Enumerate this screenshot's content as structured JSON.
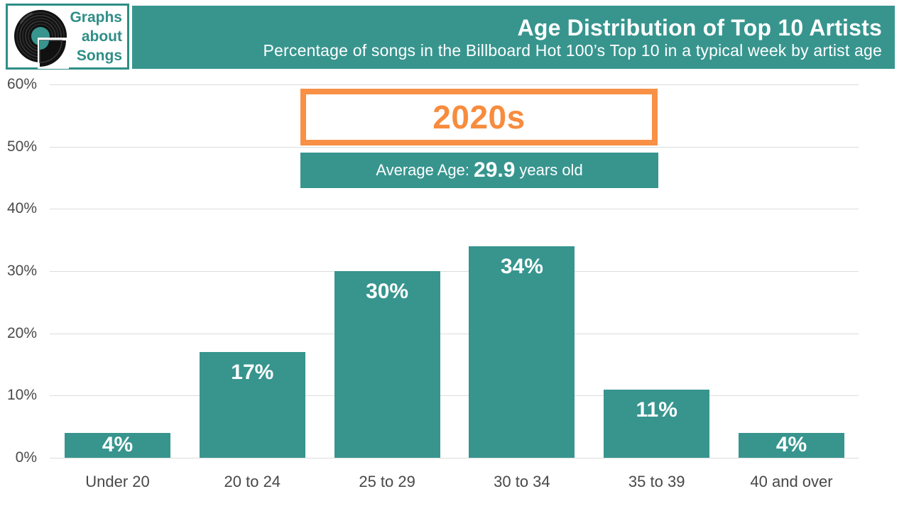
{
  "brand": {
    "lines": [
      "Graphs",
      "about",
      "Songs"
    ]
  },
  "header": {
    "title": "Age Distribution of Top 10 Artists",
    "subtitle": "Percentage of songs in the Billboard Hot 100’s Top 10 in a typical week by artist age"
  },
  "decade": {
    "label": "2020s"
  },
  "average_age": {
    "prefix": "Average Age:",
    "value": "29.9",
    "suffix": "years old"
  },
  "colors": {
    "teal": "#37958e",
    "orange_border": "#f89045",
    "orange_text": "#f78c3e",
    "grid": "#dcdcdc",
    "axis_text": "#4a4a4a",
    "bar_value_text": "#ffffff"
  },
  "chart_data": {
    "type": "bar",
    "categories": [
      "Under 20",
      "20 to 24",
      "25 to 29",
      "30 to 34",
      "35 to 39",
      "40 and over"
    ],
    "values": [
      4,
      17,
      30,
      34,
      11,
      4
    ],
    "value_labels": [
      "4%",
      "17%",
      "30%",
      "34%",
      "11%",
      "4%"
    ],
    "y_ticks": [
      "0%",
      "10%",
      "20%",
      "30%",
      "40%",
      "50%",
      "60%"
    ],
    "y_tick_values": [
      0,
      10,
      20,
      30,
      40,
      50,
      60
    ],
    "ylim": [
      0,
      60
    ],
    "grid": true,
    "legend": "none",
    "bar_color": "#37958e",
    "title": "Age Distribution of Top 10 Artists",
    "xlabel": "",
    "ylabel": ""
  }
}
